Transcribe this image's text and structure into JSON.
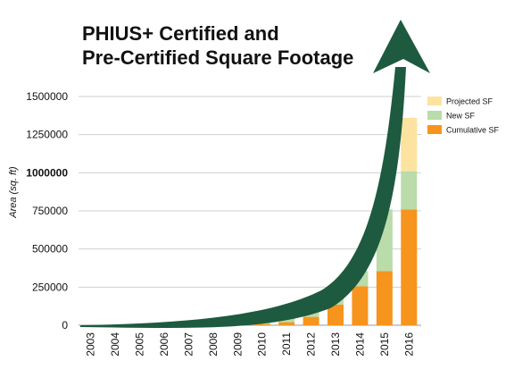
{
  "chart_data": {
    "type": "bar",
    "title_lines": [
      "PHIUS+ Certified and",
      "Pre-Certified Square Footage"
    ],
    "ylabel": "Area (sq. ft)",
    "xlabel": "",
    "ylim": [
      0,
      1500000
    ],
    "yticks": [
      0,
      250000,
      500000,
      750000,
      1000000,
      1250000,
      1500000
    ],
    "highlight_tick": 1000000,
    "highlight_color": "#ff0000",
    "grid": true,
    "legend_position": "top-right",
    "categories": [
      "2003",
      "2004",
      "2005",
      "2006",
      "2007",
      "2008",
      "2009",
      "2010",
      "2011",
      "2012",
      "2013",
      "2014",
      "2015",
      "2016"
    ],
    "stacked": true,
    "series": [
      {
        "name": "Cumulative SF",
        "color": "#f7941d",
        "values": [
          0,
          0,
          500,
          1000,
          1500,
          2000,
          3000,
          8000,
          20000,
          55000,
          135000,
          255000,
          355000,
          760000
        ]
      },
      {
        "name": "New SF",
        "color": "#b9dcaa",
        "values": [
          0,
          0,
          500,
          500,
          500,
          1000,
          5000,
          12000,
          35000,
          80000,
          120000,
          100000,
          405000,
          250000
        ]
      },
      {
        "name": "Projected SF",
        "color": "#fde3a0",
        "values": [
          0,
          0,
          0,
          0,
          0,
          0,
          0,
          0,
          0,
          0,
          0,
          0,
          0,
          350000
        ]
      }
    ],
    "legend_order": [
      "Projected SF",
      "New SF",
      "Cumulative SF"
    ],
    "arrow_color": "#1d5a3f"
  }
}
